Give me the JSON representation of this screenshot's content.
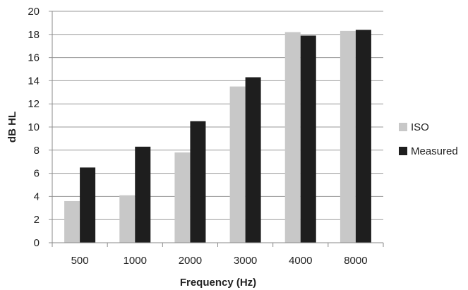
{
  "chart_data": {
    "type": "bar",
    "xlabel": "Frequency (Hz)",
    "ylabel": "dB HL",
    "categories": [
      "500",
      "1000",
      "2000",
      "3000",
      "4000",
      "8000"
    ],
    "ylim": [
      0,
      20
    ],
    "yticks": [
      0,
      2,
      4,
      6,
      8,
      10,
      12,
      14,
      16,
      18,
      20
    ],
    "grid": true,
    "legend_position": "right",
    "series": [
      {
        "name": "ISO",
        "color": "#c8c8c8",
        "values": [
          3.6,
          4.1,
          7.8,
          13.5,
          18.2,
          18.3
        ]
      },
      {
        "name": "Measured",
        "color": "#1e1e1e",
        "values": [
          6.5,
          8.3,
          10.5,
          14.3,
          17.9,
          18.4
        ]
      }
    ]
  }
}
